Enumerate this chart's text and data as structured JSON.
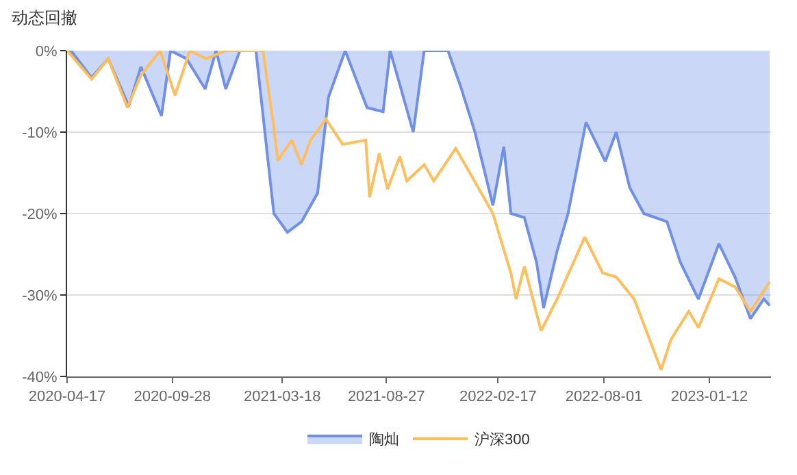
{
  "chart_data": {
    "type": "line",
    "title": "动态回撤",
    "legend": "bottom",
    "grid": "y",
    "marker": "none",
    "line_style": "solid",
    "xlim": [
      "2020-04-17",
      "2023-04-18"
    ],
    "xticks": [
      "2020-04-17",
      "2020-09-28",
      "2021-03-18",
      "2021-08-27",
      "2022-02-17",
      "2022-08-01",
      "2023-01-12"
    ],
    "ylim": [
      -40,
      0
    ],
    "yticks": [
      {
        "value": -40,
        "label": "-40%"
      },
      {
        "value": -30,
        "label": "-30%"
      },
      {
        "value": -20,
        "label": "-20%"
      },
      {
        "value": -10,
        "label": "-10%"
      },
      {
        "value": 0,
        "label": "0%"
      }
    ],
    "series": [
      {
        "name": "陶灿",
        "type": "area",
        "color": "#7090e8",
        "x": [
          "2020-04-17",
          "2020-04-23",
          "2020-05-25",
          "2020-06-20",
          "2020-07-22",
          "2020-08-10",
          "2020-09-11",
          "2020-09-25",
          "2020-10-20",
          "2020-11-18",
          "2020-12-05",
          "2020-12-20",
          "2021-01-11",
          "2021-02-05",
          "2021-02-27",
          "2021-03-05",
          "2021-03-26",
          "2021-04-17",
          "2021-05-12",
          "2021-05-29",
          "2021-06-24",
          "2021-07-28",
          "2021-08-22",
          "2021-09-02",
          "2021-10-08",
          "2021-10-25",
          "2021-12-01",
          "2021-12-22",
          "2022-01-12",
          "2022-02-09",
          "2022-02-26",
          "2022-03-09",
          "2022-03-30",
          "2022-04-18",
          "2022-04-29",
          "2022-05-20",
          "2022-06-06",
          "2022-07-04",
          "2022-08-03",
          "2022-08-20",
          "2022-09-10",
          "2022-10-02",
          "2022-11-07",
          "2022-11-28",
          "2022-12-26",
          "2023-01-27",
          "2023-02-21",
          "2023-03-17",
          "2023-04-07",
          "2023-04-16"
        ],
        "values": [
          0,
          0,
          -3.3,
          -1,
          -6.8,
          -2,
          -8,
          0,
          -1,
          -4.7,
          0,
          -4.7,
          0,
          0,
          -15.8,
          -20,
          -22.3,
          -21,
          -17.5,
          -5.7,
          0,
          -7,
          -7.5,
          0,
          -10,
          0,
          0,
          -4.7,
          -10,
          -19,
          -11.8,
          -20,
          -20.5,
          -26,
          -31.6,
          -24.6,
          -20,
          -8.8,
          -13.6,
          -10,
          -16.8,
          -20,
          -21,
          -26,
          -30.5,
          -23.7,
          -27.8,
          -32.9,
          -30.5,
          -31.3
        ]
      },
      {
        "name": "沪深300",
        "color": "#ffbe5c",
        "x": [
          "2020-04-17",
          "2020-05-25",
          "2020-06-20",
          "2020-07-20",
          "2020-08-10",
          "2020-09-09",
          "2020-10-02",
          "2020-10-25",
          "2020-11-20",
          "2020-12-20",
          "2021-01-21",
          "2021-02-16",
          "2021-03-05",
          "2021-03-11",
          "2021-04-02",
          "2021-04-17",
          "2021-05-01",
          "2021-05-25",
          "2021-06-20",
          "2021-07-26",
          "2021-08-01",
          "2021-08-16",
          "2021-08-29",
          "2021-09-17",
          "2021-09-28",
          "2021-10-25",
          "2021-11-09",
          "2021-12-13",
          "2022-01-04",
          "2022-02-09",
          "2022-03-09",
          "2022-03-17",
          "2022-03-30",
          "2022-04-25",
          "2022-05-20",
          "2022-07-02",
          "2022-07-30",
          "2022-08-20",
          "2022-09-17",
          "2022-10-29",
          "2022-11-13",
          "2022-12-11",
          "2022-12-26",
          "2023-01-27",
          "2023-02-21",
          "2023-03-17",
          "2023-04-16"
        ],
        "values": [
          0,
          -3.5,
          -1,
          -7,
          -3,
          0,
          -5.5,
          0,
          -1,
          0,
          0,
          0,
          -9.5,
          -13.5,
          -11,
          -14,
          -11,
          -8.4,
          -11.5,
          -11,
          -18,
          -12.6,
          -17,
          -13,
          -16,
          -14,
          -16,
          -12,
          -15,
          -20,
          -27.3,
          -30.5,
          -26.5,
          -34.4,
          -30.5,
          -22.9,
          -27.3,
          -27.8,
          -30.5,
          -39.2,
          -35.5,
          -32,
          -34,
          -28,
          -29,
          -32,
          -28.4
        ]
      }
    ]
  }
}
